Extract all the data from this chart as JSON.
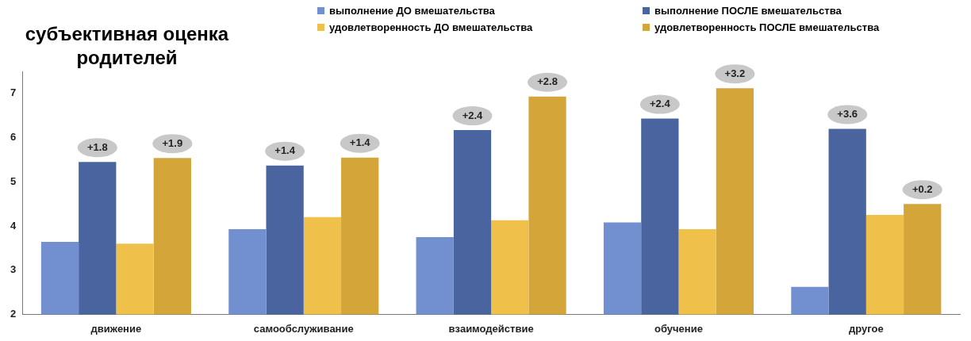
{
  "chart_data": {
    "type": "bar",
    "title": "субъективная оценка родителей",
    "categories": [
      "движение",
      "самообслуживание",
      "взаимодействие",
      "обучение",
      "другое"
    ],
    "series": [
      {
        "name": "выполнение ДО вмешательства",
        "color": "#7290cf",
        "values": [
          3.64,
          3.93,
          3.75,
          4.08,
          2.62
        ]
      },
      {
        "name": "выполнение ПОСЛЕ вмешательства",
        "color": "#4a64a0",
        "values": [
          5.45,
          5.37,
          6.17,
          6.43,
          6.2
        ]
      },
      {
        "name": "удовлетворенность ДО вмешательства",
        "color": "#f0c14a",
        "values": [
          3.6,
          4.2,
          4.13,
          3.93,
          4.25
        ]
      },
      {
        "name": "удовлетворенность ПОСЛЕ вмешательства",
        "color": "#d4a63a",
        "values": [
          5.54,
          5.55,
          6.93,
          7.12,
          4.5
        ]
      }
    ],
    "ylim": [
      2,
      7.5
    ],
    "yticks": [
      2,
      3,
      4,
      5,
      6,
      7
    ],
    "legend": "top right",
    "annotations": [
      "+1.8",
      "+1.9",
      "+1.4",
      "+1.4",
      "+2.4",
      "+2.8",
      "+2.4",
      "+3.2",
      "+3.6",
      "+0.2"
    ]
  }
}
